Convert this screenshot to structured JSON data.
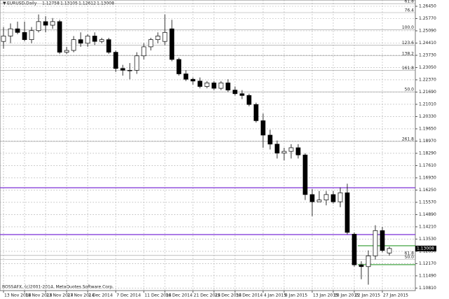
{
  "chart_data": {
    "type": "candlestick",
    "symbol": "EURUSD,Daily",
    "footer": "BOSSAFX, (c)2001-2014, MetaQuotes Software Corp.",
    "up_color": "#ffffff",
    "down_color": "#000000",
    "series": [
      {
        "open": [
          1.245,
          1.248,
          1.252,
          1.25,
          1.246,
          1.251,
          1.256,
          1.254,
          1.256,
          1.239,
          1.24,
          1.246,
          1.244,
          1.248,
          1.245,
          1.246,
          1.239,
          1.23,
          1.229,
          1.229,
          1.237,
          1.242,
          1.246,
          1.245,
          1.252,
          1.235,
          1.227,
          1.224,
          1.223,
          1.22,
          1.222,
          1.219,
          1.222,
          1.218,
          1.216,
          1.215,
          1.21,
          1.201,
          1.193,
          1.188,
          1.183,
          1.184,
          1.186,
          1.182,
          1.16,
          1.156,
          1.157,
          1.16,
          1.156,
          1.161,
          1.138,
          1.121,
          1.12,
          1.126,
          1.14,
          1.12758
        ],
        "high": [
          1.253,
          1.255,
          1.256,
          1.256,
          1.253,
          1.26,
          1.259,
          1.258,
          1.257,
          1.242,
          1.248,
          1.25,
          1.249,
          1.25,
          1.247,
          1.247,
          1.24,
          1.232,
          1.233,
          1.239,
          1.244,
          1.247,
          1.25,
          1.26,
          1.257,
          1.236,
          1.229,
          1.225,
          1.225,
          1.223,
          1.223,
          1.223,
          1.224,
          1.22,
          1.218,
          1.216,
          1.211,
          1.205,
          1.196,
          1.19,
          1.186,
          1.188,
          1.188,
          1.183,
          1.163,
          1.162,
          1.162,
          1.162,
          1.164,
          1.166,
          1.139,
          1.123,
          1.129,
          1.143,
          1.142,
          1.13105
        ],
        "low": [
          1.241,
          1.244,
          1.249,
          1.245,
          1.244,
          1.25,
          1.25,
          1.252,
          1.238,
          1.238,
          1.239,
          1.242,
          1.242,
          1.243,
          1.244,
          1.238,
          1.228,
          1.226,
          1.224,
          1.227,
          1.235,
          1.24,
          1.244,
          1.243,
          1.234,
          1.226,
          1.223,
          1.221,
          1.219,
          1.219,
          1.218,
          1.218,
          1.217,
          1.215,
          1.213,
          1.209,
          1.2,
          1.186,
          1.185,
          1.18,
          1.179,
          1.18,
          1.18,
          1.157,
          1.148,
          1.156,
          1.154,
          1.155,
          1.153,
          1.138,
          1.12,
          1.113,
          1.11,
          1.124,
          1.128,
          1.12612
        ],
        "close": [
          1.248,
          1.252,
          1.25,
          1.246,
          1.251,
          1.256,
          1.254,
          1.256,
          1.239,
          1.24,
          1.246,
          1.244,
          1.248,
          1.245,
          1.246,
          1.239,
          1.23,
          1.229,
          1.229,
          1.237,
          1.242,
          1.246,
          1.248,
          1.25,
          1.235,
          1.227,
          1.224,
          1.223,
          1.22,
          1.222,
          1.219,
          1.222,
          1.218,
          1.216,
          1.215,
          1.21,
          1.201,
          1.193,
          1.188,
          1.183,
          1.184,
          1.186,
          1.182,
          1.16,
          1.156,
          1.157,
          1.16,
          1.156,
          1.161,
          1.139,
          1.121,
          1.12,
          1.126,
          1.14,
          1.129,
          1.13008
        ]
      }
    ],
    "xlim": [
      -0.5,
      58.7
    ],
    "xticks": [
      {
        "value": 0,
        "label": "13 Nov 2014"
      },
      {
        "value": 3,
        "label": "18 Nov 2014"
      },
      {
        "value": 6,
        "label": "23 Nov 2014"
      },
      {
        "value": 9,
        "label": "27 Nov 2014"
      },
      {
        "value": 12,
        "label": "2 Dec 2014"
      },
      {
        "value": 16,
        "label": "7 Dec 2014"
      },
      {
        "value": 20,
        "label": "11 Dec 2014"
      },
      {
        "value": 23,
        "label": "16 Dec 2014"
      },
      {
        "value": 27,
        "label": "21 Dec 2014"
      },
      {
        "value": 30,
        "label": "25 Dec 2014"
      },
      {
        "value": 33,
        "label": "30 Dec 2014"
      },
      {
        "value": 37,
        "label": "4 Jan 2015"
      },
      {
        "value": 40,
        "label": "8 Jan 2015"
      },
      {
        "value": 44,
        "label": "13 Jan 2015"
      },
      {
        "value": 47,
        "label": "18 Jan 2015"
      },
      {
        "value": 50,
        "label": "22 Jan 2015"
      },
      {
        "value": 54,
        "label": "27 Jan 2015"
      }
    ],
    "ylim": [
      1.1067,
      1.268
    ],
    "yticks": [
      {
        "value": 1.2645,
        "label": "1.26450"
      },
      {
        "value": 1.2577,
        "label": "1.25770"
      },
      {
        "value": 1.2509,
        "label": "1.25090"
      },
      {
        "value": 1.2441,
        "label": "1.24410"
      },
      {
        "value": 1.2373,
        "label": "1.23730"
      },
      {
        "value": 1.2305,
        "label": "1.23050"
      },
      {
        "value": 1.2237,
        "label": "1.22370"
      },
      {
        "value": 1.2169,
        "label": "1.21690"
      },
      {
        "value": 1.2101,
        "label": "1.21010"
      },
      {
        "value": 1.2033,
        "label": "1.20330"
      },
      {
        "value": 1.1965,
        "label": "1.19650"
      },
      {
        "value": 1.1897,
        "label": "1.18970"
      },
      {
        "value": 1.1829,
        "label": "1.18290"
      },
      {
        "value": 1.1761,
        "label": "1.17610"
      },
      {
        "value": 1.1693,
        "label": "1.16930"
      },
      {
        "value": 1.1625,
        "label": "1.16250"
      },
      {
        "value": 1.1557,
        "label": "1.15570"
      },
      {
        "value": 1.1489,
        "label": "1.14890"
      },
      {
        "value": 1.1421,
        "label": "1.14210"
      },
      {
        "value": 1.1353,
        "label": "1.13530"
      },
      {
        "value": 1.1285,
        "label": "1.12850"
      },
      {
        "value": 1.1217,
        "label": "1.12170"
      },
      {
        "value": 1.1149,
        "label": "1.11490"
      },
      {
        "value": 1.1081,
        "label": "1.10810"
      }
    ],
    "grid": true,
    "fib_levels": [
      {
        "value": 1.266,
        "label": "61.8"
      },
      {
        "value": 1.261,
        "label": "76.4"
      },
      {
        "value": 1.2515,
        "label": "100.0"
      },
      {
        "value": 1.243,
        "label": "123.6"
      },
      {
        "value": 1.237,
        "label": "138.2"
      },
      {
        "value": 1.229,
        "label": "161.8"
      },
      {
        "value": 1.217,
        "label": "50.0"
      },
      {
        "value": 1.1895,
        "label": "261.8"
      },
      {
        "value": 1.1262,
        "label": "61.8"
      },
      {
        "value": 1.124,
        "label": "50.0"
      }
    ],
    "lines": [
      {
        "value": 1.1638,
        "color": "#7b2fd6",
        "from": -0.5
      },
      {
        "value": 1.1378,
        "color": "#7b2fd6",
        "from": -0.5
      },
      {
        "value": 1.1316,
        "color": "#2e9a2e",
        "from": 50.5
      },
      {
        "value": 1.1211,
        "color": "#2e9a2e",
        "from": 50.5
      }
    ]
  }
}
